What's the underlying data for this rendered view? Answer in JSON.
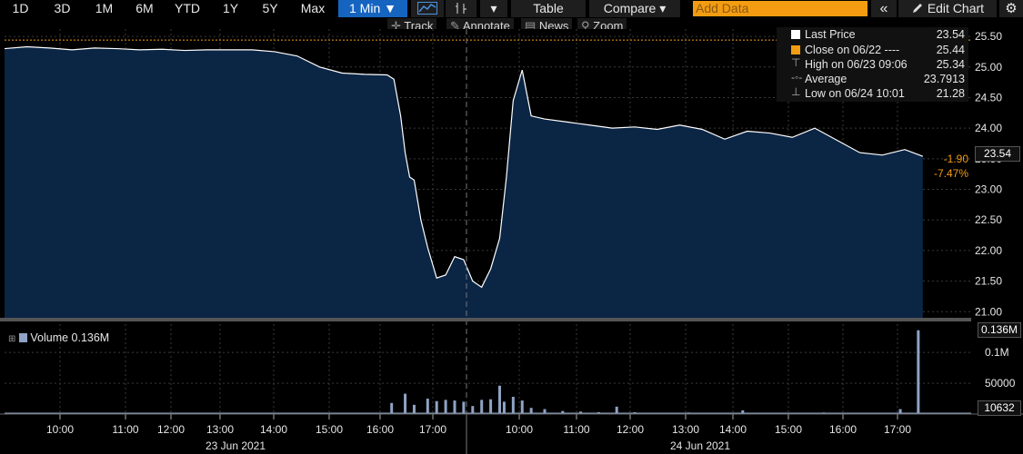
{
  "toolbar": {
    "periods": [
      "1D",
      "3D",
      "1M",
      "6M",
      "YTD",
      "1Y",
      "5Y",
      "Max"
    ],
    "interval": "1 Min ▼",
    "caret": "▾",
    "table": "Table",
    "compare": "Compare ▾",
    "add_data_placeholder": "Add Data",
    "collapse": "«",
    "edit_chart": "Edit Chart",
    "settings": "⚙"
  },
  "subbar": {
    "track": "Track",
    "annotate": "Annotate",
    "news": "News",
    "zoom": "Zoom"
  },
  "legend": {
    "last_price_label": "Last Price",
    "last_price_value": "23.54",
    "close_label": "Close on 06/22 ----",
    "close_value": "25.44",
    "high_label": "High on 06/23 09:06",
    "high_value": "25.34",
    "average_label": "Average",
    "average_value": "23.7913",
    "low_label": "Low on 06/24 10:01",
    "low_value": "21.28"
  },
  "price_tags": {
    "last": "23.54",
    "change": "-1.90",
    "change_pct": "-7.47%"
  },
  "volume": {
    "label": "Volume 0.136M",
    "top_tag": "0.136M",
    "last_tag": "10632"
  },
  "colors": {
    "area_fill": "#0b2545",
    "line": "#ffffff",
    "close_line": "#f39c12",
    "negative": "#f39c12",
    "volume": "#8fa3c4",
    "accent": "#1565c0"
  },
  "chart_data": {
    "type": "area",
    "title": "",
    "ylim": [
      20.9,
      25.62
    ],
    "y_ticks": [
      "25.50",
      "25.00",
      "24.50",
      "24.00",
      "23.50",
      "23.00",
      "22.50",
      "22.00",
      "21.50",
      "21.00"
    ],
    "x_ticks": [
      "10:00",
      "11:00",
      "12:00",
      "13:00",
      "14:00",
      "15:00",
      "16:00",
      "17:00",
      "10:00",
      "11:00",
      "12:00",
      "13:00",
      "14:00",
      "15:00",
      "16:00",
      "17:00"
    ],
    "dates": [
      "23 Jun 2021",
      "24 Jun 2021"
    ],
    "prev_close": 25.44,
    "price": {
      "x_hours": [
        0,
        0.5,
        1.0,
        1.5,
        2.0,
        2.5,
        3.0,
        3.5,
        4.0,
        4.5,
        5.0,
        5.5,
        6.0,
        6.5,
        7.0,
        7.5,
        8.0,
        8.5,
        8.65,
        8.8,
        8.9,
        9.0,
        9.1,
        9.25,
        9.4,
        9.6,
        9.8,
        10.0,
        10.2,
        10.4,
        10.6,
        10.8,
        11.0,
        11.15,
        11.3,
        11.5,
        11.7,
        12.0,
        12.5,
        13.0,
        13.5,
        14.0,
        14.5,
        15.0,
        15.5,
        16.0,
        16.5,
        17.0,
        17.5,
        18.0,
        18.5,
        19.0,
        19.5,
        20.0,
        20.4
      ],
      "values": [
        25.3,
        25.33,
        25.31,
        25.28,
        25.31,
        25.3,
        25.28,
        25.29,
        25.27,
        25.28,
        25.28,
        25.28,
        25.25,
        25.18,
        25.0,
        24.9,
        24.88,
        24.87,
        24.8,
        24.2,
        23.6,
        23.2,
        23.15,
        22.5,
        22.05,
        21.55,
        21.6,
        21.9,
        21.85,
        21.5,
        21.4,
        21.7,
        22.2,
        23.2,
        24.45,
        24.95,
        24.2,
        24.15,
        24.1,
        24.05,
        24.0,
        24.02,
        23.98,
        24.05,
        23.98,
        23.82,
        23.95,
        23.92,
        23.85,
        24.0,
        23.8,
        23.6,
        23.56,
        23.65,
        23.54
      ]
    },
    "volume_series": {
      "x_hours": [
        8.6,
        8.9,
        9.1,
        9.4,
        9.6,
        9.8,
        10.0,
        10.2,
        10.4,
        10.6,
        10.8,
        11.0,
        11.1,
        11.3,
        11.5,
        11.7,
        12.0,
        12.4,
        12.8,
        13.2,
        13.6,
        14.0,
        14.6,
        15.2,
        15.8,
        16.4,
        17.0,
        17.6,
        18.2,
        18.8,
        19.4,
        19.9,
        20.3
      ],
      "values": [
        18000,
        33000,
        15000,
        25000,
        21000,
        23000,
        22000,
        20000,
        13000,
        23000,
        24000,
        46000,
        20000,
        28000,
        22000,
        10000,
        8000,
        5000,
        4000,
        3000,
        12000,
        3000,
        2000,
        2500,
        2000,
        6000,
        2000,
        1500,
        2500,
        1500,
        1000,
        8000,
        136000
      ]
    }
  }
}
